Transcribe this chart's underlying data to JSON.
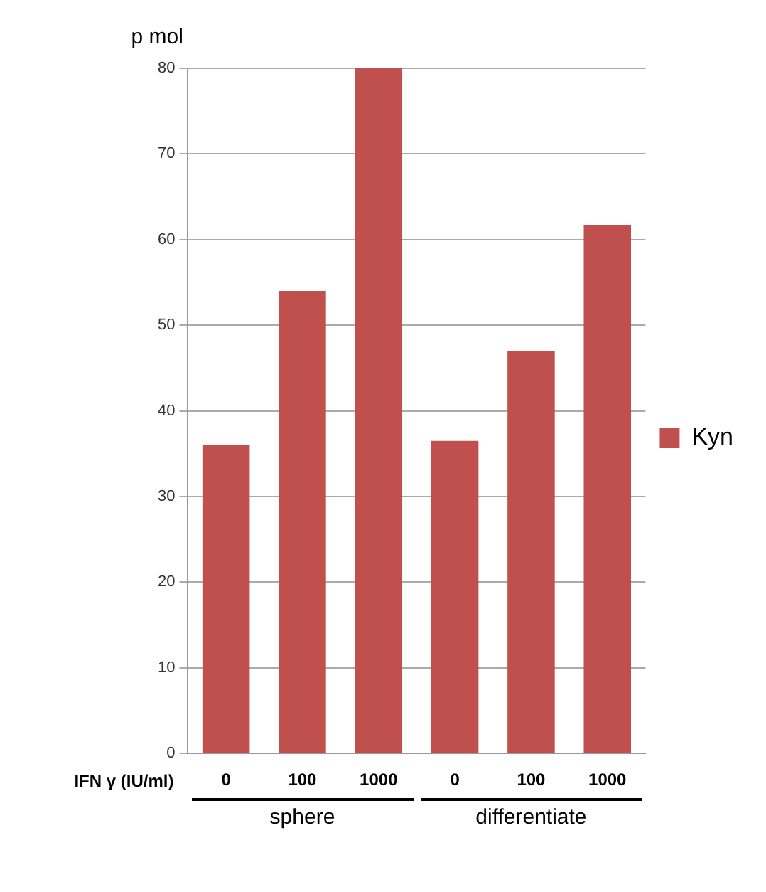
{
  "chart_data": {
    "type": "bar",
    "ylabel": "p mol",
    "xlabel": "IFN γ (IU/ml)",
    "categories": [
      "0",
      "100",
      "1000",
      "0",
      "100",
      "1000"
    ],
    "series": [
      {
        "name": "Kyn",
        "color": "#c0504d",
        "values": [
          36,
          54,
          80,
          36.5,
          47,
          61.7
        ]
      }
    ],
    "ylim": [
      0,
      80
    ],
    "yticks": [
      0,
      10,
      20,
      30,
      40,
      50,
      60,
      70,
      80
    ],
    "grid": "y",
    "legend": "right",
    "annotations": [
      "sphere",
      "differentiate"
    ]
  }
}
